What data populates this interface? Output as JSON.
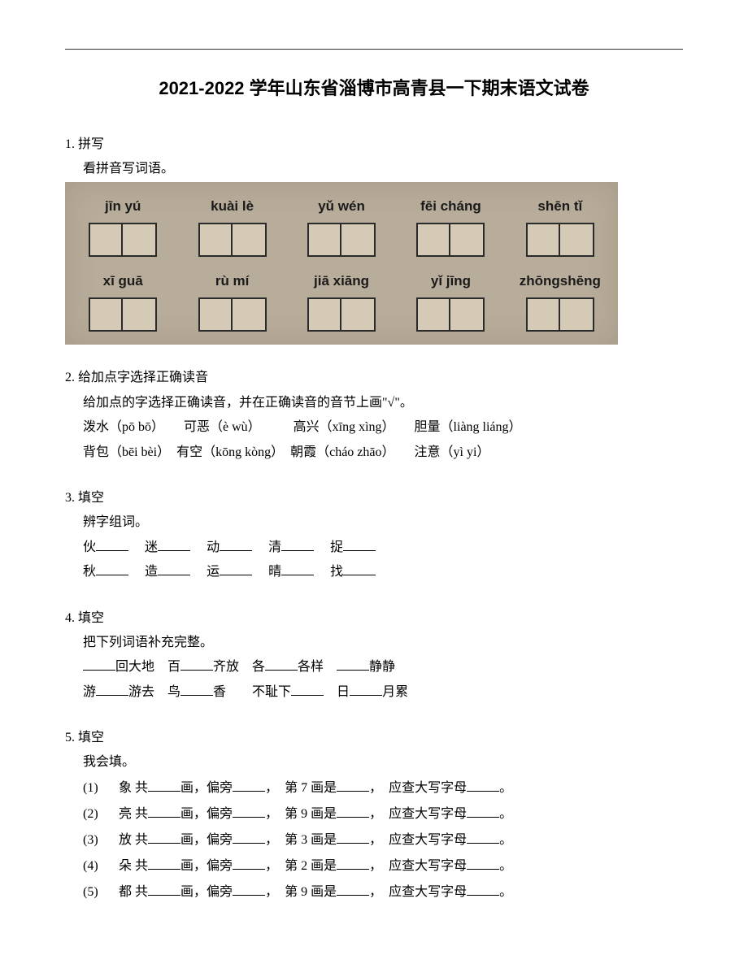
{
  "title": "2021-2022 学年山东省淄博市高青县一下期末语文试卷",
  "q1": {
    "num": "1.",
    "type": "拼写",
    "desc": "看拼音写词语。",
    "pinyin_rows": [
      [
        "jīn yú",
        "kuài lè",
        "yǔ wén",
        "fēi cháng",
        "shēn tǐ"
      ],
      [
        "xī guā",
        "rù mí",
        "jiā xiāng",
        "yǐ jīng",
        "zhōngshēng"
      ]
    ]
  },
  "q2": {
    "num": "2.",
    "type": "给加点字选择正确读音",
    "desc": "给加点的字选择正确读音，并在正确读音的音节上画\"√\"。",
    "line1": "泼水（pō bō）　　可恶（è wù）　　　高兴（xīng xìng）　　胆量（liàng liáng）",
    "line2": "背包（bēi bèi）　有空（kōng kòng）　朝霞（cháo zhāo）　　注意（yì yi）"
  },
  "q3": {
    "num": "3.",
    "type": "填空",
    "desc": "辨字组词。",
    "line1_chars": [
      "伙",
      "迷",
      "动",
      "清",
      "捉"
    ],
    "line2_chars": [
      "秋",
      "造",
      "运",
      "晴",
      "找"
    ]
  },
  "q4": {
    "num": "4.",
    "type": "填空",
    "desc": "把下列词语补充完整。",
    "line1_parts": [
      "回大地　百",
      "齐放　各",
      "各样　",
      "静静"
    ],
    "line2_parts": [
      "游",
      "游去　鸟",
      "香　　不耻下",
      "　日",
      "月累"
    ]
  },
  "q5": {
    "num": "5.",
    "type": "填空",
    "desc": "我会填。",
    "items": [
      {
        "n": "(1)",
        "char": "象",
        "stroke": "7"
      },
      {
        "n": "(2)",
        "char": "亮",
        "stroke": "9"
      },
      {
        "n": "(3)",
        "char": "放",
        "stroke": "3"
      },
      {
        "n": "(4)",
        "char": "朵",
        "stroke": "2"
      },
      {
        "n": "(5)",
        "char": "都",
        "stroke": "9"
      }
    ],
    "tpl_a": " 共",
    "tpl_b": "画，偏旁",
    "tpl_c": "，　第 ",
    "tpl_d": " 画是",
    "tpl_e": "，　应查大写字母",
    "tpl_f": "。"
  }
}
